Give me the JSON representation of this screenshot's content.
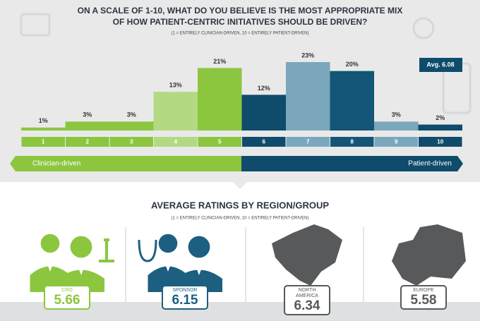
{
  "chart_data": {
    "type": "bar",
    "title_lines": [
      "ON A SCALE OF 1-10, WHAT DO YOU BELIEVE IS THE MOST APPROPRIATE MIX",
      "OF HOW PATIENT-CENTRIC INITIATIVES SHOULD BE DRIVEN?"
    ],
    "subtitle": "(1 = ENTIRELY CLINICIAN-DRIVEN, 10 = ENTIRELY PATIENT-DRIVEN)",
    "categories": [
      "1",
      "2",
      "3",
      "4",
      "5",
      "6",
      "7",
      "8",
      "9",
      "10"
    ],
    "values": [
      1,
      3,
      3,
      13,
      21,
      12,
      23,
      20,
      3,
      2
    ],
    "value_labels": [
      "1%",
      "3%",
      "3%",
      "13%",
      "21%",
      "12%",
      "23%",
      "20%",
      "3%",
      "2%"
    ],
    "colors": [
      "#8cc63f",
      "#8cc63f",
      "#8cc63f",
      "#b3da82",
      "#8cc63f",
      "#0f4c6b",
      "#7ba7bc",
      "#135677",
      "#7ba7bc",
      "#0f4c6b"
    ],
    "average_label": "Avg. 6.08",
    "left_label": "Clinician-driven",
    "left_color": "#8cc63f",
    "right_label": "Patient-driven",
    "right_color": "#0f4c6b"
  },
  "section2": {
    "title": "AVERAGE RATINGS BY REGION/GROUP",
    "subtitle": "(1 = ENTIRELY CLINICIAN-DRIVEN, 10 = ENTIRELY PATIENT-DRIVEN)",
    "groups": [
      {
        "label": "CRO",
        "value": 5.66,
        "color": "#8cc63f"
      },
      {
        "label": "SPONSOR",
        "value": 6.15,
        "color": "#1d5f80"
      },
      {
        "label": "NORTH AMERICA",
        "value": 6.34,
        "color": "#58595b"
      },
      {
        "label": "EUROPE",
        "value": 5.58,
        "color": "#58595b"
      }
    ]
  }
}
